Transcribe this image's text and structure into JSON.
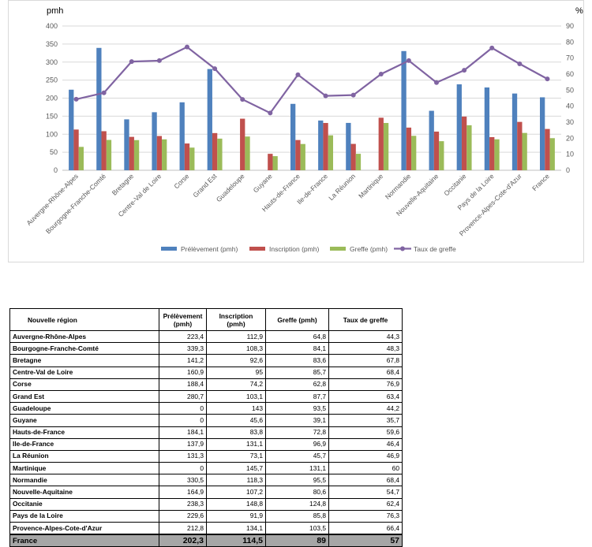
{
  "colors": {
    "prelevement": "#4f81bd",
    "inscription": "#c0504d",
    "greffe": "#9bbb59",
    "taux": "#8064a2",
    "grid": "#d9d9d9",
    "total_row": "#a6a6a6"
  },
  "chart_data": {
    "type": "bar+line",
    "y_unit_left": "pmh",
    "y_unit_right": "%",
    "categories": [
      "Auvergne-Rhône-Alpes",
      "Bourgogne-Franche-Comté",
      "Bretagne",
      "Centre-Val de Loire",
      "Corse",
      "Grand Est",
      "Guadeloupe",
      "Guyane",
      "Hauts-de-France",
      "Ile-de-France",
      "La Réunion",
      "Martinique",
      "Normandie",
      "Nouvelle-Aquitaine",
      "Occitanie",
      "Pays de la Loire",
      "Provence-Alpes-Cote-d'Azur",
      "France"
    ],
    "series": [
      {
        "name": "Prélèvement (pmh)",
        "type": "bar",
        "axis": "left",
        "color": "#4f81bd",
        "values": [
          223.4,
          339.3,
          141.2,
          160.9,
          188.4,
          280.7,
          0,
          0,
          184.1,
          137.9,
          131.3,
          0,
          330.5,
          164.9,
          238.3,
          229.6,
          212.8,
          202.3
        ]
      },
      {
        "name": "Inscription (pmh)",
        "type": "bar",
        "axis": "left",
        "color": "#c0504d",
        "values": [
          112.9,
          108.3,
          92.6,
          95,
          74.2,
          103.1,
          143,
          45.6,
          83.8,
          131.1,
          73.1,
          145.7,
          118.3,
          107.2,
          148.8,
          91.9,
          134.1,
          114.5
        ]
      },
      {
        "name": "Greffe (pmh)",
        "type": "bar",
        "axis": "left",
        "color": "#9bbb59",
        "values": [
          64.8,
          84.1,
          83.6,
          85.7,
          62.8,
          87.7,
          93.5,
          39.1,
          72.8,
          96.9,
          45.7,
          131.1,
          95.5,
          80.6,
          124.8,
          85.8,
          103.5,
          89
        ]
      },
      {
        "name": "Taux de greffe",
        "type": "line",
        "axis": "right",
        "color": "#8064a2",
        "values": [
          44.3,
          48.3,
          67.8,
          68.4,
          76.9,
          63.4,
          44.2,
          35.7,
          59.6,
          46.4,
          46.9,
          60,
          68.4,
          54.7,
          62.4,
          76.3,
          66.4,
          57
        ]
      }
    ],
    "ylim_left": [
      0,
      400
    ],
    "yticks_left": [
      0,
      50,
      100,
      150,
      200,
      250,
      300,
      350,
      400
    ],
    "ylim_right": [
      0,
      90
    ],
    "yticks_right": [
      0,
      10,
      20,
      30,
      40,
      50,
      60,
      70,
      80,
      90
    ],
    "grid": true,
    "legend_position": "bottom"
  },
  "table": {
    "headers": {
      "region": "Nouvelle région",
      "prelevement": "Prélèvement (pmh)",
      "inscription": "Inscription (pmh)",
      "greffe": "Greffe (pmh)",
      "taux": "Taux de greffe"
    },
    "rows": [
      {
        "region": "Auvergne-Rhône-Alpes",
        "prelevement": "223,4",
        "inscription": "112,9",
        "greffe": "64,8",
        "taux": "44,3"
      },
      {
        "region": "Bourgogne-Franche-Comté",
        "prelevement": "339,3",
        "inscription": "108,3",
        "greffe": "84,1",
        "taux": "48,3"
      },
      {
        "region": "Bretagne",
        "prelevement": "141,2",
        "inscription": "92,6",
        "greffe": "83,6",
        "taux": "67,8"
      },
      {
        "region": "Centre-Val de Loire",
        "prelevement": "160,9",
        "inscription": "95",
        "greffe": "85,7",
        "taux": "68,4"
      },
      {
        "region": "Corse",
        "prelevement": "188,4",
        "inscription": "74,2",
        "greffe": "62,8",
        "taux": "76,9"
      },
      {
        "region": "Grand Est",
        "prelevement": "280,7",
        "inscription": "103,1",
        "greffe": "87,7",
        "taux": "63,4"
      },
      {
        "region": "Guadeloupe",
        "prelevement": "0",
        "inscription": "143",
        "greffe": "93,5",
        "taux": "44,2"
      },
      {
        "region": "Guyane",
        "prelevement": "0",
        "inscription": "45,6",
        "greffe": "39,1",
        "taux": "35,7"
      },
      {
        "region": "Hauts-de-France",
        "prelevement": "184,1",
        "inscription": "83,8",
        "greffe": "72,8",
        "taux": "59,6"
      },
      {
        "region": "Ile-de-France",
        "prelevement": "137,9",
        "inscription": "131,1",
        "greffe": "96,9",
        "taux": "46,4"
      },
      {
        "region": "La Réunion",
        "prelevement": "131,3",
        "inscription": "73,1",
        "greffe": "45,7",
        "taux": "46,9"
      },
      {
        "region": "Martinique",
        "prelevement": "0",
        "inscription": "145,7",
        "greffe": "131,1",
        "taux": "60"
      },
      {
        "region": "Normandie",
        "prelevement": "330,5",
        "inscription": "118,3",
        "greffe": "95,5",
        "taux": "68,4"
      },
      {
        "region": "Nouvelle-Aquitaine",
        "prelevement": "164,9",
        "inscription": "107,2",
        "greffe": "80,6",
        "taux": "54,7"
      },
      {
        "region": "Occitanie",
        "prelevement": "238,3",
        "inscription": "148,8",
        "greffe": "124,8",
        "taux": "62,4"
      },
      {
        "region": "Pays de la Loire",
        "prelevement": "229,6",
        "inscription": "91,9",
        "greffe": "85,8",
        "taux": "76,3"
      },
      {
        "region": "Provence-Alpes-Cote-d'Azur",
        "prelevement": "212,8",
        "inscription": "134,1",
        "greffe": "103,5",
        "taux": "66,4"
      }
    ],
    "total": {
      "region": "France",
      "prelevement": "202,3",
      "inscription": "114,5",
      "greffe": "89",
      "taux": "57"
    }
  }
}
